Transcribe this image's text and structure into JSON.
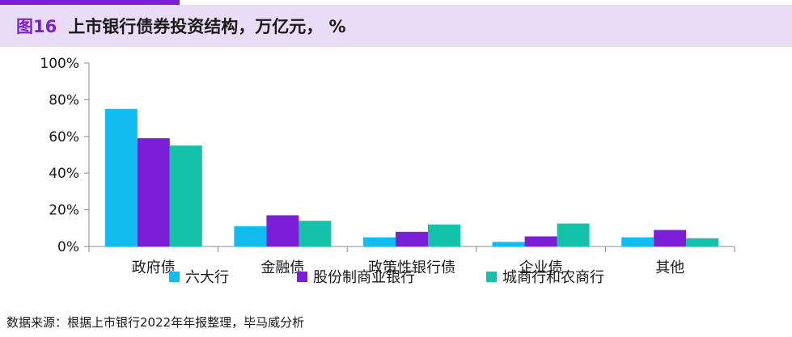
{
  "header": {
    "figure_label": "图16",
    "title": "上市银行债券投资结构，万亿元， %"
  },
  "colors": {
    "accent": "#7a1fd6",
    "title_band": "#e9dcf7"
  },
  "chart_data": {
    "type": "bar",
    "categories": [
      "政府债",
      "金融债",
      "政策性银行债",
      "企业债",
      "其他"
    ],
    "series": [
      {
        "name": "六大行",
        "color": "#11bdf0",
        "values": [
          75,
          11,
          5,
          2.5,
          5
        ]
      },
      {
        "name": "股份制商业银行",
        "color": "#7a1fd6",
        "values": [
          59,
          17,
          8,
          5.5,
          9
        ]
      },
      {
        "name": "城商行和农商行",
        "color": "#14c1a9",
        "values": [
          55,
          14,
          12,
          12.5,
          4.5
        ]
      }
    ],
    "ylim": [
      0,
      100
    ],
    "yticks": [
      "0%",
      "20%",
      "40%",
      "60%",
      "80%",
      "100%"
    ],
    "ytick_values": [
      0,
      20,
      40,
      60,
      80,
      100
    ],
    "legend_position": "bottom"
  },
  "footer": {
    "source": "数据来源：根据上市银行2022年年报整理，毕马威分析"
  }
}
